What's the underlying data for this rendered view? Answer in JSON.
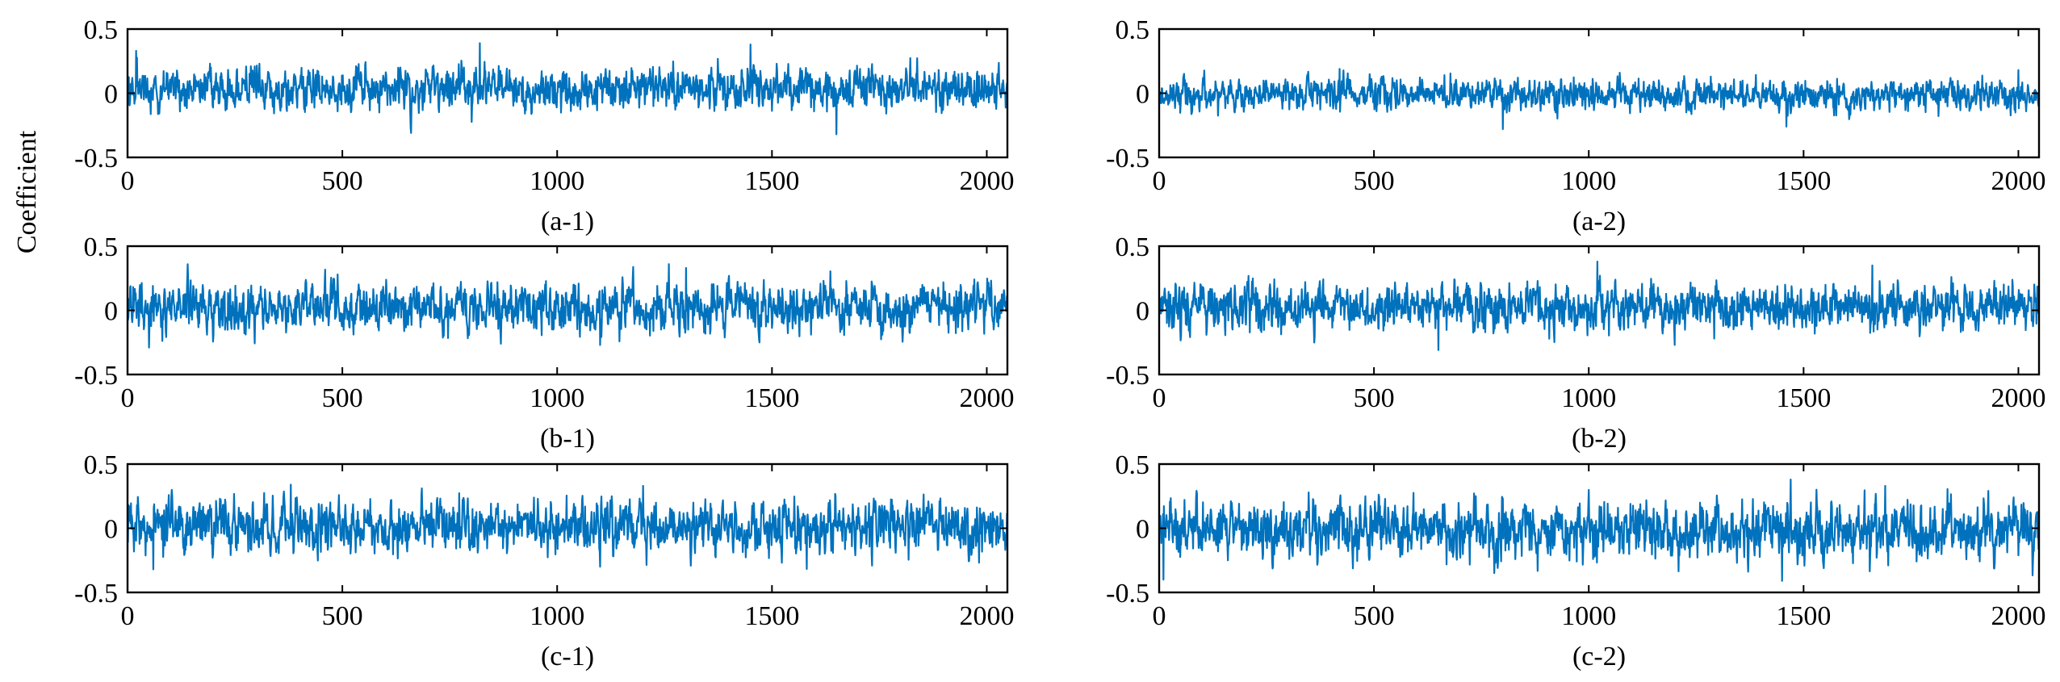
{
  "figure": {
    "ylabel": "Coefficient",
    "line_color": "#0072BD",
    "axis_color": "#000000",
    "background": "#ffffff"
  },
  "chart_data": [
    {
      "type": "line",
      "caption": "(a-1)",
      "xlim": [
        0,
        2048
      ],
      "ylim": [
        -0.5,
        0.5
      ],
      "xticks": [
        "0",
        "500",
        "1000",
        "1500",
        "2000"
      ],
      "yticks": [
        "0.5",
        "0",
        "-0.5"
      ],
      "n_points": 2048,
      "mean": 0.03,
      "std": 0.08,
      "min": -0.32,
      "max": 0.39,
      "peaks": [
        {
          "x": 20,
          "y": 0.33
        },
        {
          "x": 820,
          "y": 0.39
        },
        {
          "x": 1450,
          "y": 0.38
        },
        {
          "x": 1650,
          "y": -0.32
        },
        {
          "x": 660,
          "y": -0.31
        }
      ]
    },
    {
      "type": "line",
      "caption": "(a-2)",
      "xlim": [
        0,
        2048
      ],
      "ylim": [
        -0.5,
        0.5
      ],
      "xticks": [
        "0",
        "500",
        "1000",
        "1500",
        "2000"
      ],
      "yticks": [
        "0.5",
        "0",
        "-0.5"
      ],
      "n_points": 2048,
      "mean": -0.01,
      "std": 0.06,
      "min": -0.3,
      "max": 0.2,
      "peaks": [
        {
          "x": 420,
          "y": 0.19
        },
        {
          "x": 800,
          "y": -0.28
        },
        {
          "x": 1460,
          "y": -0.26
        },
        {
          "x": 2000,
          "y": 0.18
        }
      ]
    },
    {
      "type": "line",
      "caption": "(b-1)",
      "xlim": [
        0,
        2048
      ],
      "ylim": [
        -0.5,
        0.5
      ],
      "xticks": [
        "0",
        "500",
        "1000",
        "1500",
        "2000"
      ],
      "yticks": [
        "0.5",
        "0",
        "-0.5"
      ],
      "n_points": 2048,
      "mean": 0.02,
      "std": 0.09,
      "min": -0.3,
      "max": 0.36,
      "peaks": [
        {
          "x": 1260,
          "y": 0.36
        },
        {
          "x": 1300,
          "y": 0.33
        },
        {
          "x": 50,
          "y": -0.29
        },
        {
          "x": 1100,
          "y": -0.27
        }
      ]
    },
    {
      "type": "line",
      "caption": "(b-2)",
      "xlim": [
        0,
        2048
      ],
      "ylim": [
        -0.5,
        0.5
      ],
      "xticks": [
        "0",
        "500",
        "1000",
        "1500",
        "2000"
      ],
      "yticks": [
        "0.5",
        "0",
        "-0.5"
      ],
      "n_points": 2048,
      "mean": 0.03,
      "std": 0.09,
      "min": -0.32,
      "max": 0.38,
      "peaks": [
        {
          "x": 1020,
          "y": 0.38
        },
        {
          "x": 1660,
          "y": 0.35
        },
        {
          "x": 650,
          "y": -0.31
        },
        {
          "x": 1200,
          "y": -0.27
        }
      ]
    },
    {
      "type": "line",
      "caption": "(c-1)",
      "xlim": [
        0,
        2048
      ],
      "ylim": [
        -0.5,
        0.5
      ],
      "xticks": [
        "0",
        "500",
        "1000",
        "1500",
        "2000"
      ],
      "yticks": [
        "0.5",
        "0",
        "-0.5"
      ],
      "n_points": 2048,
      "mean": 0.01,
      "std": 0.1,
      "min": -0.33,
      "max": 0.35,
      "peaks": [
        {
          "x": 380,
          "y": 0.34
        },
        {
          "x": 1200,
          "y": 0.33
        },
        {
          "x": 60,
          "y": -0.32
        },
        {
          "x": 1100,
          "y": -0.3
        }
      ]
    },
    {
      "type": "line",
      "caption": "(c-2)",
      "xlim": [
        0,
        2048
      ],
      "ylim": [
        -0.5,
        0.5
      ],
      "xticks": [
        "0",
        "500",
        "1000",
        "1500",
        "2000"
      ],
      "yticks": [
        "0.5",
        "0",
        "-0.5"
      ],
      "n_points": 2048,
      "mean": -0.01,
      "std": 0.11,
      "min": -0.42,
      "max": 0.38,
      "peaks": [
        {
          "x": 1470,
          "y": 0.38
        },
        {
          "x": 1450,
          "y": -0.41
        },
        {
          "x": 10,
          "y": -0.4
        },
        {
          "x": 1690,
          "y": 0.33
        }
      ]
    }
  ]
}
